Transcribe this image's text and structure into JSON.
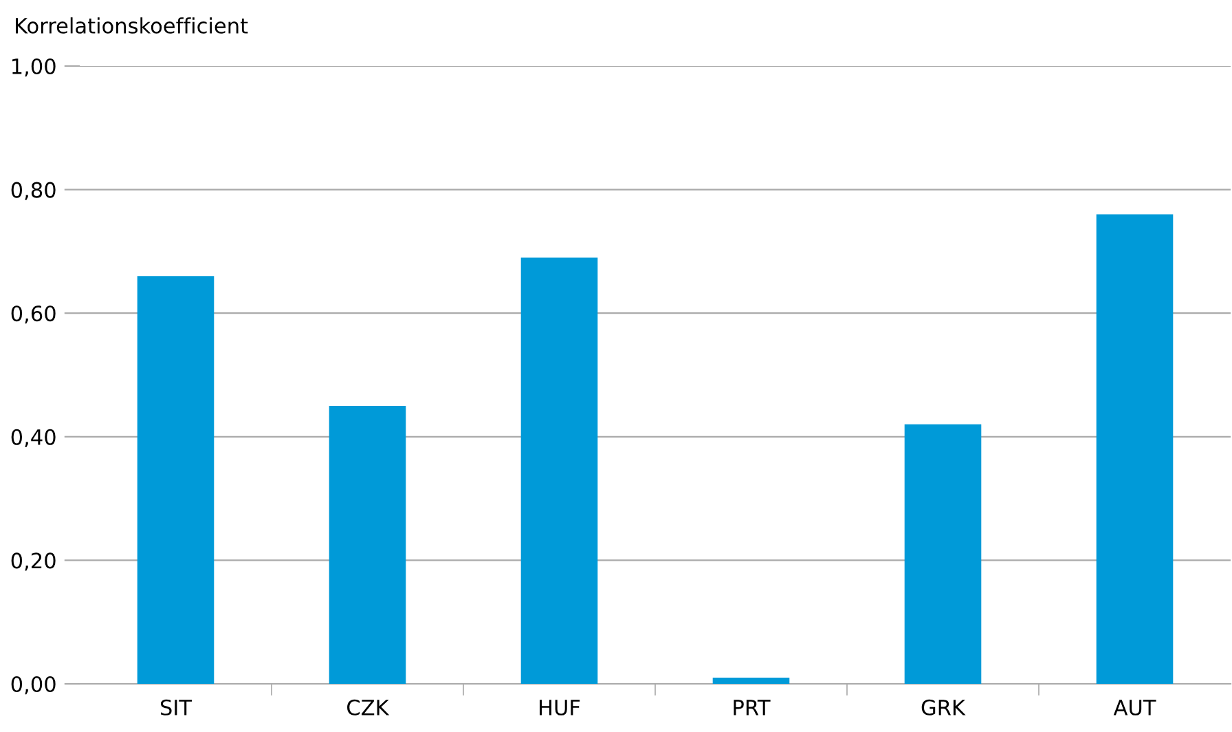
{
  "chart_data": {
    "type": "bar",
    "ylabel": "Korrelationskoefficient",
    "categories": [
      "SIT",
      "CZK",
      "HUF",
      "PRT",
      "GRK",
      "AUT"
    ],
    "values": [
      0.66,
      0.45,
      0.69,
      0.01,
      0.42,
      0.76
    ],
    "color": "#009ad8",
    "ylim": [
      0,
      1
    ],
    "yticks": [
      {
        "value": 0,
        "label": "0,00"
      },
      {
        "value": 0.2,
        "label": "0,20"
      },
      {
        "value": 0.4,
        "label": "0,40"
      },
      {
        "value": 0.6,
        "label": "0,60"
      },
      {
        "value": 0.8,
        "label": "0,80"
      },
      {
        "value": 1,
        "label": "1,00"
      }
    ],
    "grid": "y"
  }
}
